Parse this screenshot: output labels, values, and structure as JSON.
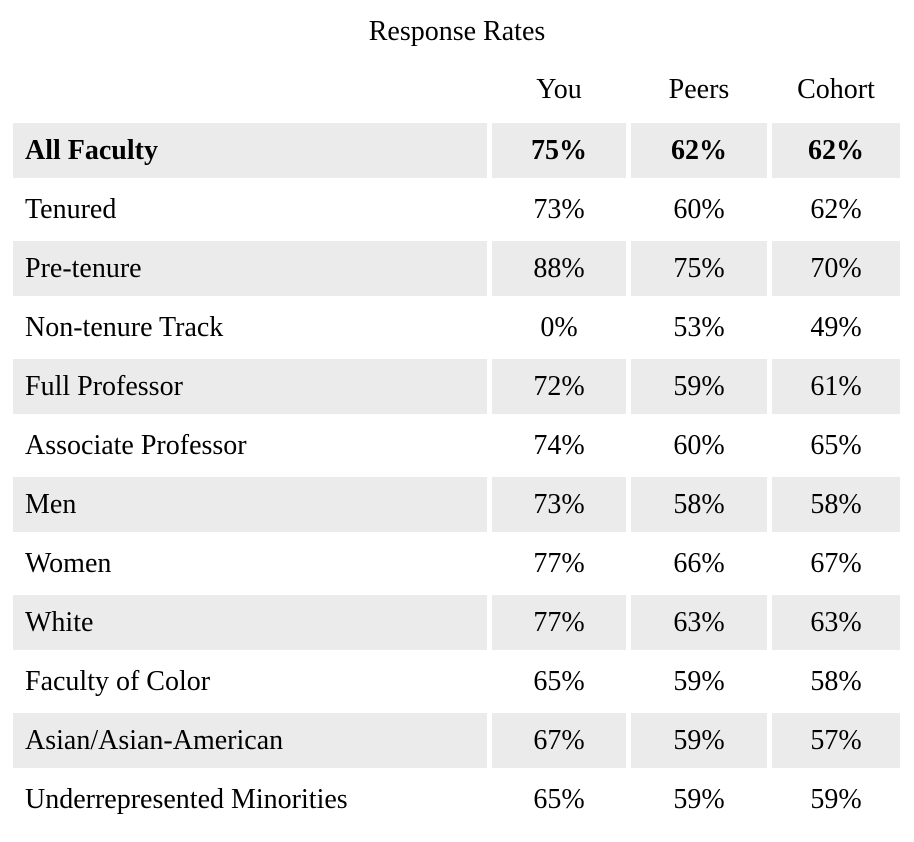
{
  "title": "Response Rates",
  "colors": {
    "row_shade": "#EBEBEB",
    "text": "#000000",
    "page_background": "#FFFFFF"
  },
  "table": {
    "columns": [
      "You",
      "Peers",
      "Cohort"
    ],
    "rows": [
      {
        "label": "All Faculty",
        "you": "75%",
        "peers": "62%",
        "cohort": "62%"
      },
      {
        "label": "Tenured",
        "you": "73%",
        "peers": "60%",
        "cohort": "62%"
      },
      {
        "label": "Pre-tenure",
        "you": "88%",
        "peers": "75%",
        "cohort": "70%"
      },
      {
        "label": "Non-tenure Track",
        "you": "0%",
        "peers": "53%",
        "cohort": "49%"
      },
      {
        "label": "Full Professor",
        "you": "72%",
        "peers": "59%",
        "cohort": "61%"
      },
      {
        "label": "Associate Professor",
        "you": "74%",
        "peers": "60%",
        "cohort": "65%"
      },
      {
        "label": "Men",
        "you": "73%",
        "peers": "58%",
        "cohort": "58%"
      },
      {
        "label": "Women",
        "you": "77%",
        "peers": "66%",
        "cohort": "67%"
      },
      {
        "label": "White",
        "you": "77%",
        "peers": "63%",
        "cohort": "63%"
      },
      {
        "label": "Faculty of Color",
        "you": "65%",
        "peers": "59%",
        "cohort": "58%"
      },
      {
        "label": "Asian/Asian-American",
        "you": "67%",
        "peers": "59%",
        "cohort": "57%"
      },
      {
        "label": "Underrepresented Minorities",
        "you": "65%",
        "peers": "59%",
        "cohort": "59%"
      }
    ]
  },
  "chart_data": {
    "type": "table",
    "title": "Response Rates",
    "columns": [
      "You",
      "Peers",
      "Cohort"
    ],
    "categories": [
      "All Faculty",
      "Tenured",
      "Pre-tenure",
      "Non-tenure Track",
      "Full Professor",
      "Associate Professor",
      "Men",
      "Women",
      "White",
      "Faculty of Color",
      "Asian/Asian-American",
      "Underrepresented Minorities"
    ],
    "series": [
      {
        "name": "You",
        "values": [
          75,
          73,
          88,
          0,
          72,
          74,
          73,
          77,
          77,
          65,
          67,
          65
        ]
      },
      {
        "name": "Peers",
        "values": [
          62,
          60,
          75,
          53,
          59,
          60,
          58,
          66,
          63,
          59,
          59,
          59
        ]
      },
      {
        "name": "Cohort",
        "values": [
          62,
          62,
          70,
          49,
          61,
          65,
          58,
          67,
          63,
          58,
          57,
          59
        ]
      }
    ],
    "unit": "%",
    "emphasized_row": "All Faculty",
    "row_shading": "alternating starting with first data row"
  }
}
